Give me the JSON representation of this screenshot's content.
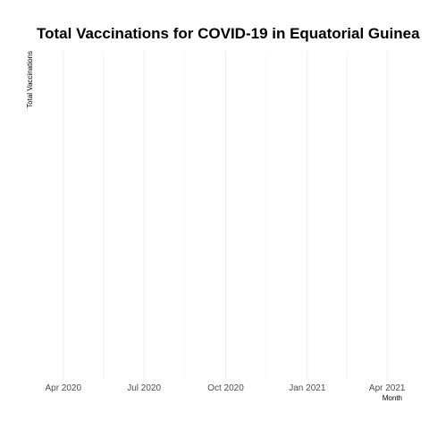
{
  "chart_data": {
    "type": "line",
    "title": "Total Vaccinations for COVID-19 in Equatorial Guinea",
    "xlabel": "Month",
    "ylabel": "Total Vaccinations",
    "x_ticks": [
      "Apr 2020",
      "Jul 2020",
      "Oct 2020",
      "Jan 2021",
      "Apr 2021"
    ],
    "x_minor_ticks": [
      "2020-05-16",
      "2020-08-16",
      "2020-11-16",
      "2021-02-15"
    ],
    "x_range": [
      "2020-03-01",
      "2021-04-30"
    ],
    "series": [],
    "grid": true,
    "legend": "none",
    "colors": {
      "grid_major": "#ebebeb",
      "grid_minor": "#f2f2f2",
      "tick_text": "#4d4d4d",
      "text": "#000000"
    }
  }
}
